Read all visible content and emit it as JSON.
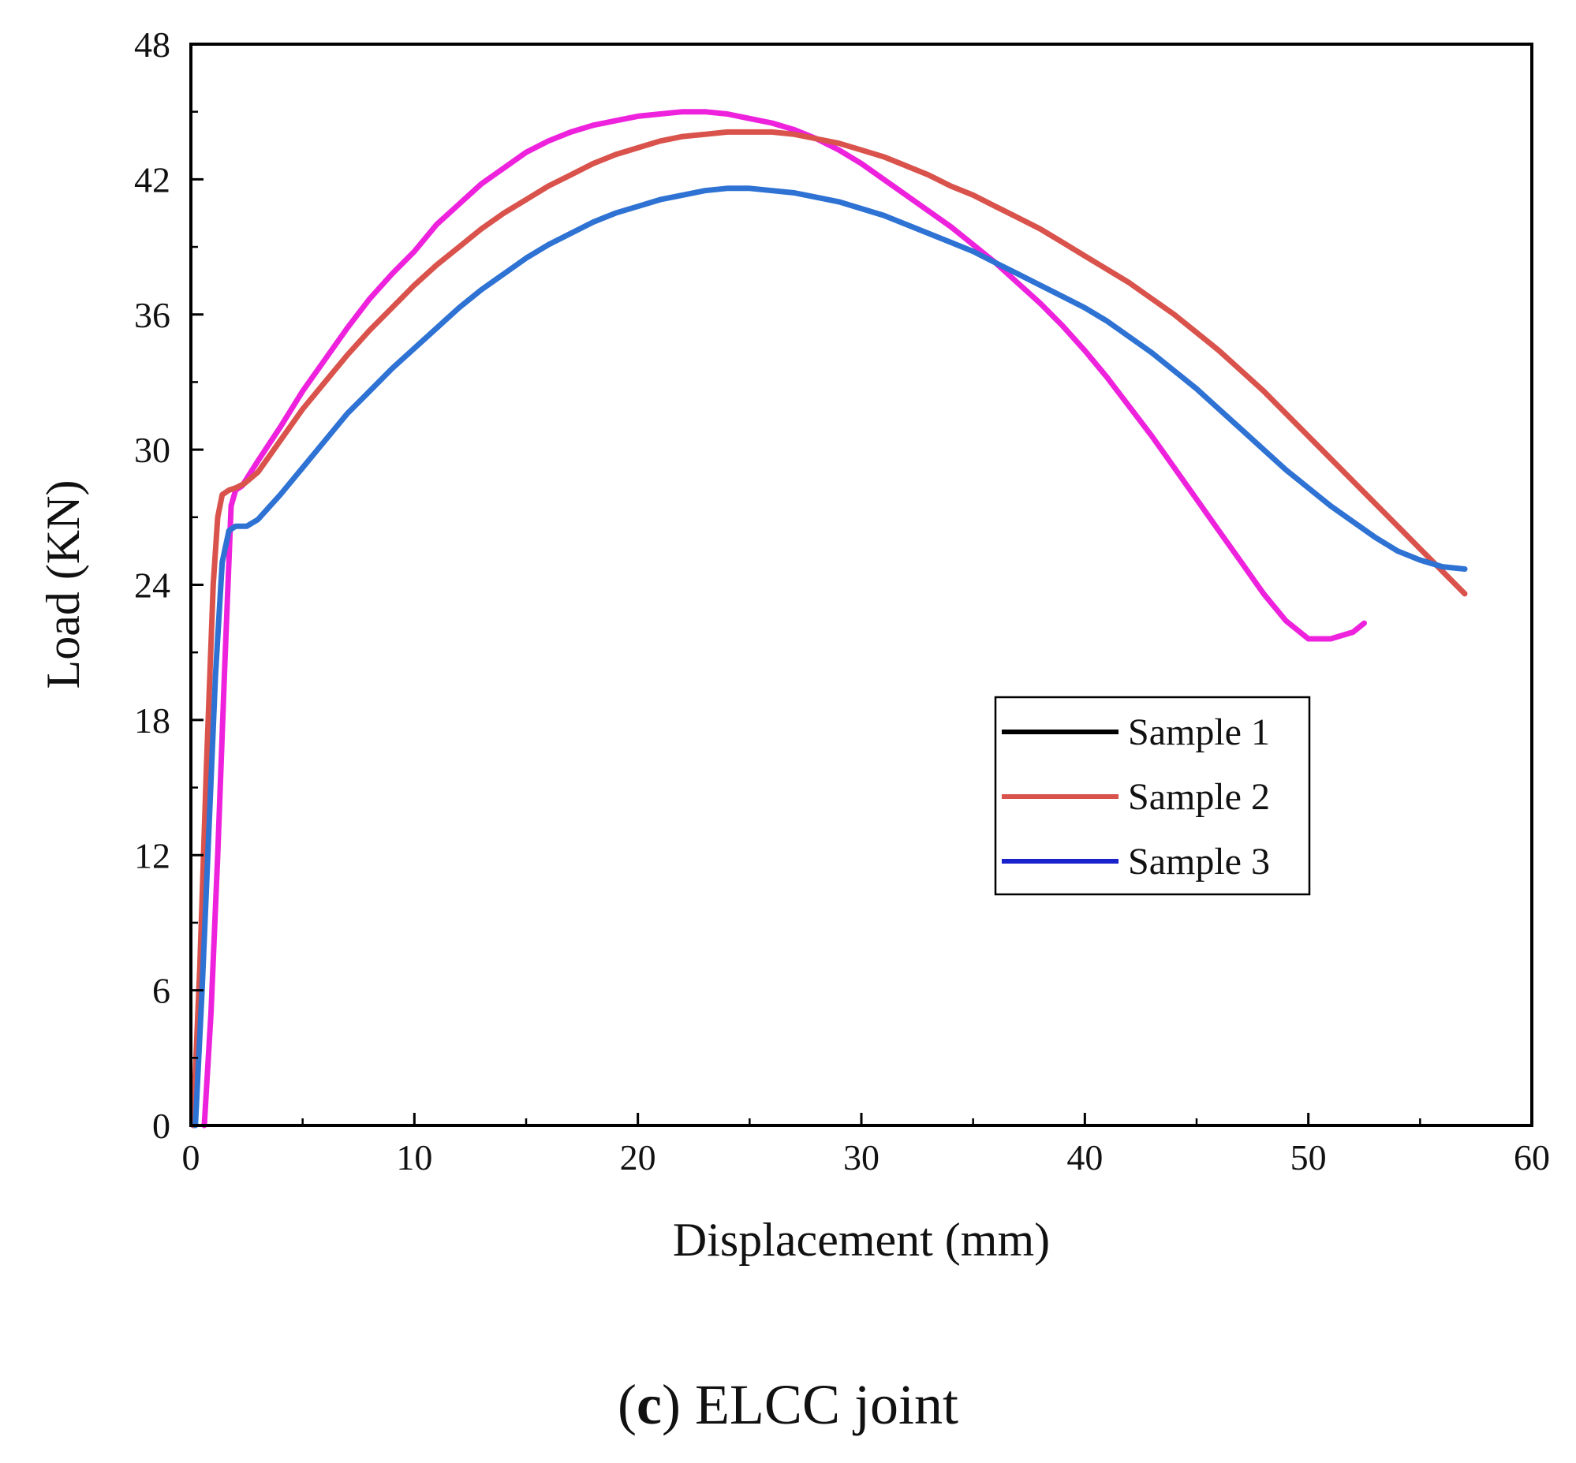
{
  "chart_data": {
    "type": "line",
    "title": "",
    "xlabel": "Displacement (mm)",
    "ylabel": "Load (KN)",
    "xlim": [
      0,
      60
    ],
    "ylim": [
      0,
      48
    ],
    "xticks": [
      0,
      10,
      20,
      30,
      40,
      50,
      60
    ],
    "yticks": [
      0,
      6,
      12,
      18,
      24,
      30,
      36,
      42,
      48
    ],
    "grid": false,
    "legend_position": "right-middle",
    "series": [
      {
        "name": "Sample 1",
        "color": "#ee22dd",
        "legend_color": "#000000",
        "x": [
          0.6,
          0.9,
          1.2,
          1.5,
          1.8,
          2.0,
          2.3,
          3.0,
          4.0,
          5.0,
          6.0,
          7.0,
          8.0,
          9.0,
          10.0,
          11.0,
          12.0,
          13.0,
          14.0,
          15.0,
          16.0,
          17.0,
          18.0,
          19.0,
          20.0,
          21.0,
          22.0,
          23.0,
          24.0,
          25.0,
          26.0,
          27.0,
          28.0,
          29.0,
          30.0,
          31.0,
          32.0,
          33.0,
          34.0,
          35.0,
          36.0,
          37.0,
          38.0,
          39.0,
          40.0,
          41.0,
          42.0,
          43.0,
          44.0,
          45.0,
          46.0,
          47.0,
          48.0,
          49.0,
          50.0,
          51.0,
          52.0,
          52.5
        ],
        "y": [
          0,
          5,
          12,
          20,
          27.5,
          28.2,
          28.4,
          29.5,
          31.0,
          32.6,
          34.0,
          35.4,
          36.7,
          37.8,
          38.8,
          40.0,
          40.9,
          41.8,
          42.5,
          43.2,
          43.7,
          44.1,
          44.4,
          44.6,
          44.8,
          44.9,
          45.0,
          45.0,
          44.9,
          44.7,
          44.5,
          44.2,
          43.8,
          43.3,
          42.7,
          42.0,
          41.3,
          40.6,
          39.9,
          39.1,
          38.3,
          37.4,
          36.5,
          35.5,
          34.4,
          33.2,
          31.9,
          30.6,
          29.2,
          27.8,
          26.4,
          25.0,
          23.6,
          22.4,
          21.6,
          21.6,
          21.9,
          22.3
        ]
      },
      {
        "name": "Sample 2",
        "color": "#d9534c",
        "legend_color": "#d9534c",
        "x": [
          0.1,
          0.4,
          0.7,
          1.0,
          1.2,
          1.4,
          1.7,
          2.0,
          2.4,
          3.0,
          4.0,
          5.0,
          6.0,
          7.0,
          8.0,
          9.0,
          10.0,
          11.0,
          12.0,
          13.0,
          14.0,
          15.0,
          16.0,
          17.0,
          18.0,
          19.0,
          20.0,
          21.0,
          22.0,
          23.0,
          24.0,
          25.0,
          26.0,
          27.0,
          28.0,
          29.0,
          30.0,
          31.0,
          32.0,
          33.0,
          34.0,
          35.0,
          36.0,
          37.0,
          38.0,
          39.0,
          40.0,
          41.0,
          42.0,
          43.0,
          44.0,
          45.0,
          46.0,
          47.0,
          48.0,
          49.0,
          50.0,
          51.0,
          52.0,
          53.0,
          54.0,
          55.0,
          56.0,
          57.0
        ],
        "y": [
          0,
          7,
          16,
          24,
          27.0,
          28.0,
          28.2,
          28.3,
          28.5,
          29.0,
          30.4,
          31.8,
          33.0,
          34.2,
          35.3,
          36.3,
          37.3,
          38.2,
          39.0,
          39.8,
          40.5,
          41.1,
          41.7,
          42.2,
          42.7,
          43.1,
          43.4,
          43.7,
          43.9,
          44.0,
          44.1,
          44.1,
          44.1,
          44.0,
          43.8,
          43.6,
          43.3,
          43.0,
          42.6,
          42.2,
          41.7,
          41.3,
          40.8,
          40.3,
          39.8,
          39.2,
          38.6,
          38.0,
          37.4,
          36.7,
          36.0,
          35.2,
          34.4,
          33.5,
          32.6,
          31.6,
          30.6,
          29.6,
          28.6,
          27.6,
          26.6,
          25.6,
          24.6,
          23.6
        ]
      },
      {
        "name": "Sample 3",
        "color": "#2e72d4",
        "legend_color": "#1a22cc",
        "x": [
          0.2,
          0.5,
          0.8,
          1.1,
          1.4,
          1.7,
          2.0,
          2.5,
          3.0,
          4.0,
          5.0,
          6.0,
          7.0,
          8.0,
          9.0,
          10.0,
          11.0,
          12.0,
          13.0,
          14.0,
          15.0,
          16.0,
          17.0,
          18.0,
          19.0,
          20.0,
          21.0,
          22.0,
          23.0,
          24.0,
          25.0,
          26.0,
          27.0,
          28.0,
          29.0,
          30.0,
          31.0,
          32.0,
          33.0,
          34.0,
          35.0,
          36.0,
          37.0,
          38.0,
          39.0,
          40.0,
          41.0,
          42.0,
          43.0,
          44.0,
          45.0,
          46.0,
          47.0,
          48.0,
          49.0,
          50.0,
          51.0,
          52.0,
          53.0,
          54.0,
          55.0,
          56.0,
          57.0
        ],
        "y": [
          0,
          6,
          13,
          20,
          25.0,
          26.4,
          26.6,
          26.6,
          26.9,
          28.0,
          29.2,
          30.4,
          31.6,
          32.6,
          33.6,
          34.5,
          35.4,
          36.3,
          37.1,
          37.8,
          38.5,
          39.1,
          39.6,
          40.1,
          40.5,
          40.8,
          41.1,
          41.3,
          41.5,
          41.6,
          41.6,
          41.5,
          41.4,
          41.2,
          41.0,
          40.7,
          40.4,
          40.0,
          39.6,
          39.2,
          38.8,
          38.3,
          37.8,
          37.3,
          36.8,
          36.3,
          35.7,
          35.0,
          34.3,
          33.5,
          32.7,
          31.8,
          30.9,
          30.0,
          29.1,
          28.3,
          27.5,
          26.8,
          26.1,
          25.5,
          25.1,
          24.8,
          24.7
        ]
      }
    ]
  },
  "caption": {
    "letter": "c",
    "text": " ELCC joint"
  }
}
